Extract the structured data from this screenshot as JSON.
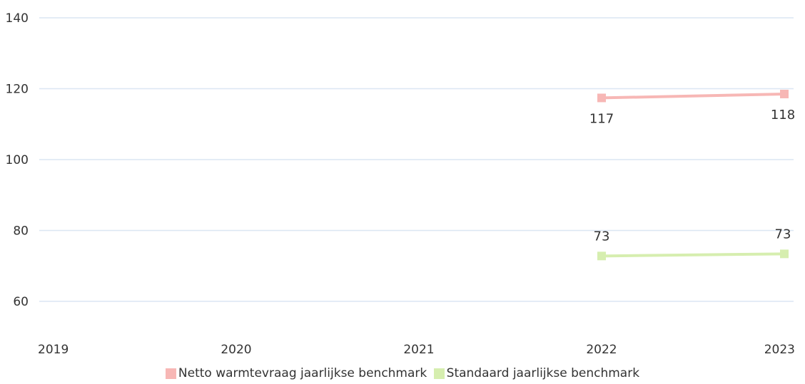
{
  "chart_data": {
    "type": "line",
    "title": "",
    "xlabel": "",
    "ylabel": "",
    "categories": [
      "2019",
      "2020",
      "2021",
      "2022",
      "2023"
    ],
    "ylim": [
      50,
      140
    ],
    "yticks": [
      60,
      80,
      100,
      120,
      140
    ],
    "grid": true,
    "legend_position": "bottom",
    "series": [
      {
        "name": "Netto warmtevraag jaarlijkse benchmark",
        "color": "#f7b7b5",
        "values": [
          null,
          null,
          null,
          117.4,
          118.5
        ],
        "labels": [
          null,
          null,
          null,
          "117",
          "118"
        ]
      },
      {
        "name": "Standaard jaarlijkse benchmark",
        "color": "#d6eeaf",
        "values": [
          null,
          null,
          null,
          72.8,
          73.4
        ],
        "labels": [
          null,
          null,
          null,
          "73",
          "73"
        ]
      }
    ]
  }
}
